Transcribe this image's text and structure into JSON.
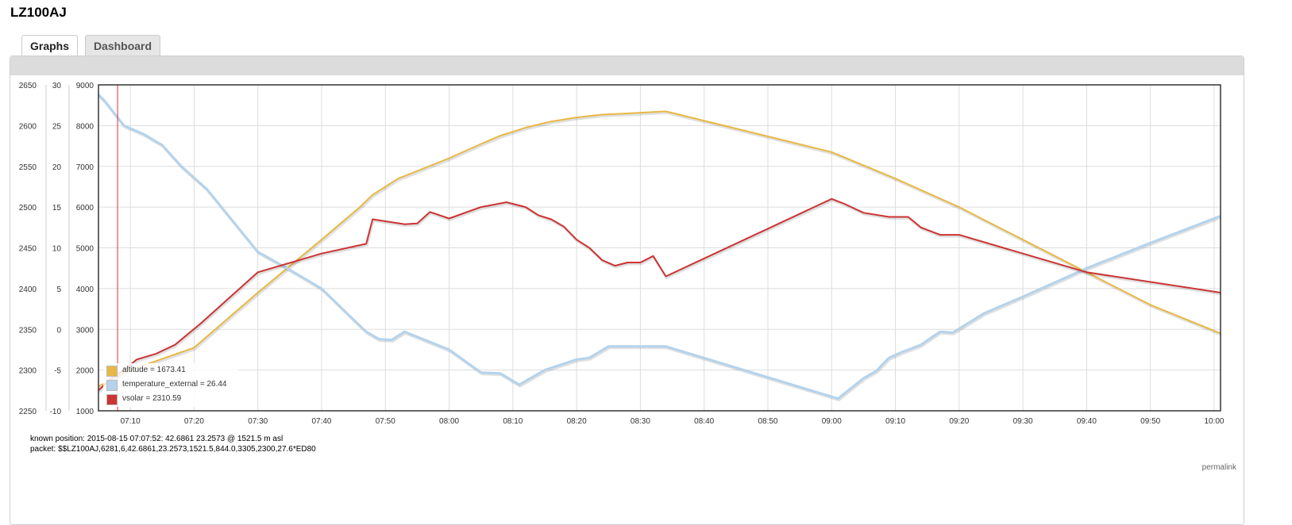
{
  "page": {
    "title": "LZ100AJ"
  },
  "tabs": [
    {
      "label": "Graphs",
      "active": true
    },
    {
      "label": "Dashboard",
      "active": false
    }
  ],
  "info": {
    "known_position": "known position: 2015-08-15 07:07:52: 42.6861 23.2573 @ 1521.5 m asl",
    "packet": "packet: $$LZ100AJ,6281,6,42.6861,23.2573,1521.5,844.0,3305,2300,27.6*ED80"
  },
  "permalink": "permalink",
  "chart_data": {
    "type": "line",
    "x_ticks": [
      "07:10",
      "07:20",
      "07:30",
      "07:40",
      "07:50",
      "08:00",
      "08:10",
      "08:20",
      "08:30",
      "08:40",
      "08:50",
      "09:00",
      "09:10",
      "09:20",
      "09:30",
      "09:40",
      "09:50",
      "10:00"
    ],
    "xlim": [
      "07:05",
      "10:01"
    ],
    "grid": true,
    "legend_position": "bottom-left",
    "cursor_time": "07:08",
    "axes": [
      {
        "id": "vsolar",
        "ticks": [
          "2650",
          "2600",
          "2550",
          "2500",
          "2450",
          "2400",
          "2350",
          "2300",
          "2250"
        ],
        "ylim": [
          2250,
          2650
        ]
      },
      {
        "id": "temperature_external",
        "ticks": [
          "30",
          "25",
          "20",
          "15",
          "10",
          "5",
          "0",
          "-5",
          "-10"
        ],
        "ylim": [
          -10,
          30
        ]
      },
      {
        "id": "altitude",
        "ticks": [
          "9000",
          "8000",
          "7000",
          "6000",
          "5000",
          "4000",
          "3000",
          "2000",
          "1000"
        ],
        "ylim": [
          1000,
          9000
        ]
      }
    ],
    "series": [
      {
        "name": "altitude",
        "legend": "altitude = 1673.41",
        "color": "#e8b844",
        "axis": "altitude",
        "points": [
          [
            "07:05",
            1600
          ],
          [
            "07:10",
            2000
          ],
          [
            "07:20",
            2550
          ],
          [
            "07:30",
            3900
          ],
          [
            "07:40",
            5200
          ],
          [
            "07:46",
            6000
          ],
          [
            "07:48",
            6300
          ],
          [
            "07:52",
            6700
          ],
          [
            "08:00",
            7200
          ],
          [
            "08:05",
            7550
          ],
          [
            "08:08",
            7750
          ],
          [
            "08:12",
            7950
          ],
          [
            "08:16",
            8100
          ],
          [
            "08:20",
            8200
          ],
          [
            "08:24",
            8270
          ],
          [
            "08:28",
            8300
          ],
          [
            "08:34",
            8350
          ],
          [
            "09:00",
            7350
          ],
          [
            "09:10",
            6700
          ],
          [
            "09:20",
            6000
          ],
          [
            "09:30",
            5200
          ],
          [
            "09:40",
            4400
          ],
          [
            "09:50",
            3600
          ],
          [
            "10:01",
            2900
          ]
        ]
      },
      {
        "name": "temperature_external",
        "legend": "temperature_external = 26.44",
        "color": "#b4d3ec",
        "axis": "temperature_external",
        "points": [
          [
            "07:05",
            28.8
          ],
          [
            "07:06",
            28
          ],
          [
            "07:09",
            25
          ],
          [
            "07:12",
            24
          ],
          [
            "07:15",
            22.6
          ],
          [
            "07:18",
            20
          ],
          [
            "07:22",
            17.2
          ],
          [
            "07:30",
            9.5
          ],
          [
            "07:35",
            7.3
          ],
          [
            "07:40",
            5
          ],
          [
            "07:45",
            1.2
          ],
          [
            "07:47",
            -0.3
          ],
          [
            "07:49",
            -1.2
          ],
          [
            "07:51",
            -1.3
          ],
          [
            "07:53",
            -0.3
          ],
          [
            "08:00",
            -2.5
          ],
          [
            "08:05",
            -5.3
          ],
          [
            "08:08",
            -5.4
          ],
          [
            "08:11",
            -6.8
          ],
          [
            "08:15",
            -5
          ],
          [
            "08:20",
            -3.7
          ],
          [
            "08:22",
            -3.5
          ],
          [
            "08:25",
            -2.1
          ],
          [
            "08:34",
            -2.1
          ],
          [
            "09:01",
            -8.5
          ],
          [
            "09:05",
            -6
          ],
          [
            "09:07",
            -5.1
          ],
          [
            "09:09",
            -3.5
          ],
          [
            "09:11",
            -2.8
          ],
          [
            "09:14",
            -1.9
          ],
          [
            "09:17",
            -0.3
          ],
          [
            "09:19",
            -0.4
          ],
          [
            "09:24",
            2
          ],
          [
            "09:30",
            4
          ],
          [
            "09:40",
            7.5
          ],
          [
            "09:50",
            10.6
          ],
          [
            "10:01",
            13.9
          ]
        ]
      },
      {
        "name": "vsolar",
        "legend": "vsolar = 2310.59",
        "color": "#cc3333",
        "axis": "vsolar",
        "points": [
          [
            "07:05",
            2275
          ],
          [
            "07:07",
            2290
          ],
          [
            "07:09",
            2300
          ],
          [
            "07:11",
            2313
          ],
          [
            "07:14",
            2320
          ],
          [
            "07:17",
            2331
          ],
          [
            "07:21",
            2357
          ],
          [
            "07:30",
            2420
          ],
          [
            "07:40",
            2443
          ],
          [
            "07:47",
            2455
          ],
          [
            "07:48",
            2485
          ],
          [
            "07:53",
            2479
          ],
          [
            "07:55",
            2480
          ],
          [
            "07:57",
            2494
          ],
          [
            "08:00",
            2486
          ],
          [
            "08:05",
            2500
          ],
          [
            "08:09",
            2506
          ],
          [
            "08:12",
            2500
          ],
          [
            "08:14",
            2490
          ],
          [
            "08:16",
            2485
          ],
          [
            "08:18",
            2476
          ],
          [
            "08:20",
            2460
          ],
          [
            "08:22",
            2450
          ],
          [
            "08:24",
            2435
          ],
          [
            "08:26",
            2428
          ],
          [
            "08:28",
            2432
          ],
          [
            "08:30",
            2432
          ],
          [
            "08:32",
            2440
          ],
          [
            "08:34",
            2415
          ],
          [
            "09:00",
            2510
          ],
          [
            "09:02",
            2504
          ],
          [
            "09:05",
            2493
          ],
          [
            "09:09",
            2488
          ],
          [
            "09:12",
            2488
          ],
          [
            "09:14",
            2475
          ],
          [
            "09:17",
            2466
          ],
          [
            "09:20",
            2466
          ],
          [
            "09:40",
            2420
          ],
          [
            "10:01",
            2395
          ]
        ]
      }
    ]
  }
}
